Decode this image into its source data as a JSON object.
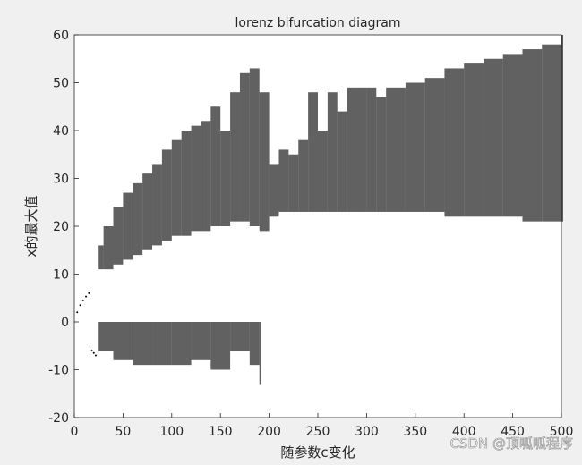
{
  "chart_data": {
    "type": "range",
    "title": "lorenz bifurcation diagram",
    "x_label": "随参数c变化",
    "y_label": "x的最大值",
    "watermark": "CSDN @顶呱呱程序",
    "xlim": [
      0,
      500
    ],
    "ylim": [
      -20,
      60
    ],
    "xticks": [
      0,
      50,
      100,
      150,
      200,
      250,
      300,
      350,
      400,
      450,
      500
    ],
    "yticks": [
      -20,
      -10,
      0,
      10,
      20,
      30,
      40,
      50,
      60
    ],
    "color": "#000000",
    "series": [
      {
        "x": [
          25,
          30,
          40,
          50,
          60,
          70,
          80,
          90,
          100,
          110,
          120,
          130,
          140,
          150,
          160,
          170,
          180,
          190,
          200,
          210,
          220,
          230,
          240,
          250,
          260,
          270,
          280,
          290,
          300,
          310,
          320,
          340,
          360,
          380,
          400,
          420,
          440,
          460,
          480,
          500
        ],
        "low": [
          11,
          11,
          12,
          13,
          14,
          15,
          16,
          17,
          18,
          18,
          19,
          19,
          20,
          20,
          21,
          21,
          20,
          19,
          22,
          23,
          23,
          23,
          23,
          23,
          23,
          23,
          23,
          23,
          23,
          23,
          23,
          23,
          23,
          22,
          22,
          22,
          22,
          21,
          21,
          21
        ],
        "high": [
          16,
          20,
          24,
          27,
          29,
          31,
          33,
          36,
          38,
          40,
          41,
          42,
          45,
          40,
          48,
          52,
          53,
          48,
          33,
          36,
          35,
          38,
          48,
          40,
          48,
          44,
          49,
          49,
          49,
          47,
          49,
          50,
          51,
          53,
          54,
          55,
          56,
          57,
          58,
          60
        ]
      },
      {
        "x": [
          25,
          40,
          60,
          80,
          100,
          120,
          140,
          160,
          180,
          190
        ],
        "low": [
          -6,
          -8,
          -9,
          -9,
          -9,
          -8,
          -10,
          -6,
          -9,
          -13
        ],
        "high": [
          0,
          0,
          0,
          0,
          0,
          0,
          0,
          0,
          0,
          0
        ]
      }
    ],
    "points": {
      "x": [
        3,
        6,
        9,
        12,
        15,
        18,
        20,
        22
      ],
      "y": [
        2,
        3.5,
        4.5,
        5.3,
        6,
        -6,
        -6.5,
        -7
      ]
    }
  }
}
